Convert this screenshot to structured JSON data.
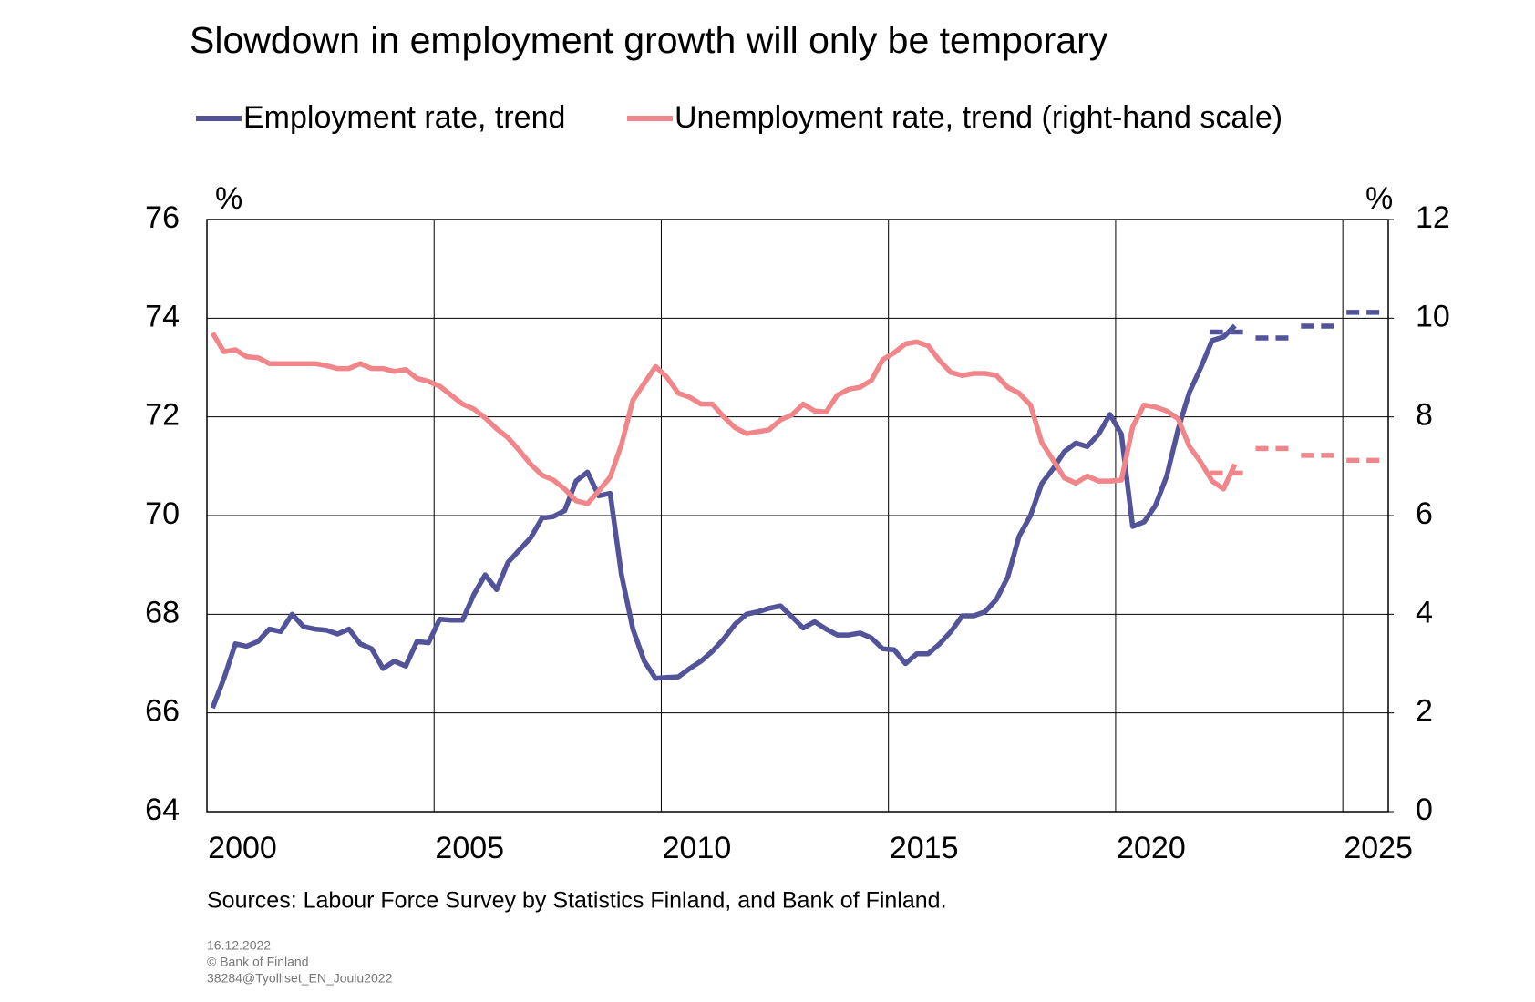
{
  "chart_data": {
    "type": "line",
    "title": "Slowdown in employment growth will only be temporary",
    "y_unit": "%",
    "y2_unit": "%",
    "source": "Sources: Labour Force Survey by Statistics Finland, and Bank of Finland.",
    "notes": [
      "16.12.2022",
      "© Bank of Finland",
      "38284@Tyolliset_EN_Joulu2022"
    ],
    "xlim": [
      2000,
      2026
    ],
    "xticks": [
      2000,
      2005,
      2010,
      2015,
      2020,
      2025
    ],
    "ylim": [
      64,
      76
    ],
    "yticks": [
      64,
      66,
      68,
      70,
      72,
      74,
      76
    ],
    "y2lim": [
      0,
      12
    ],
    "y2ticks": [
      0,
      2,
      4,
      6,
      8,
      10,
      12
    ],
    "grid": true,
    "x": [
      2000.125,
      2000.375,
      2000.625,
      2000.875,
      2001.125,
      2001.375,
      2001.625,
      2001.875,
      2002.125,
      2002.375,
      2002.625,
      2002.875,
      2003.125,
      2003.375,
      2003.625,
      2003.875,
      2004.125,
      2004.375,
      2004.625,
      2004.875,
      2005.125,
      2005.375,
      2005.625,
      2005.875,
      2006.125,
      2006.375,
      2006.625,
      2006.875,
      2007.125,
      2007.375,
      2007.625,
      2007.875,
      2008.125,
      2008.375,
      2008.625,
      2008.875,
      2009.125,
      2009.375,
      2009.625,
      2009.875,
      2010.125,
      2010.375,
      2010.625,
      2010.875,
      2011.125,
      2011.375,
      2011.625,
      2011.875,
      2012.125,
      2012.375,
      2012.625,
      2012.875,
      2013.125,
      2013.375,
      2013.625,
      2013.875,
      2014.125,
      2014.375,
      2014.625,
      2014.875,
      2015.125,
      2015.375,
      2015.625,
      2015.875,
      2016.125,
      2016.375,
      2016.625,
      2016.875,
      2017.125,
      2017.375,
      2017.625,
      2017.875,
      2018.125,
      2018.375,
      2018.625,
      2018.875,
      2019.125,
      2019.375,
      2019.625,
      2019.875,
      2020.125,
      2020.375,
      2020.625,
      2020.875,
      2021.125,
      2021.375,
      2021.625,
      2021.875,
      2022.125,
      2022.375,
      2022.625
    ],
    "series": [
      {
        "name": "Employment rate, trend",
        "color": "#525399",
        "axis": "y",
        "values": [
          66.1,
          66.7,
          67.4,
          67.35,
          67.45,
          67.7,
          67.65,
          68.0,
          67.75,
          67.7,
          67.68,
          67.6,
          67.7,
          67.4,
          67.3,
          66.9,
          67.05,
          66.95,
          67.45,
          67.42,
          67.9,
          67.88,
          67.88,
          68.4,
          68.8,
          68.5,
          69.05,
          69.3,
          69.55,
          69.95,
          69.98,
          70.1,
          70.7,
          70.88,
          70.4,
          70.45,
          68.8,
          67.7,
          67.05,
          66.7,
          66.72,
          66.73,
          66.9,
          67.05,
          67.25,
          67.5,
          67.8,
          68.0,
          68.05,
          68.12,
          68.17,
          67.95,
          67.72,
          67.85,
          67.7,
          67.58,
          67.58,
          67.62,
          67.52,
          67.3,
          67.28,
          67.0,
          67.2,
          67.2,
          67.4,
          67.65,
          67.97,
          67.97,
          68.05,
          68.3,
          68.75,
          69.58,
          70.0,
          70.65,
          70.95,
          71.3,
          71.47,
          71.4,
          71.65,
          72.05,
          71.65,
          69.78,
          69.87,
          70.2,
          70.8,
          71.75,
          72.5,
          73.0,
          73.55,
          73.62,
          73.85
        ],
        "forecast": {
          "x": [
            2022,
            2023,
            2024,
            2025
          ],
          "values": [
            73.72,
            73.6,
            73.84,
            74.12
          ]
        }
      },
      {
        "name": "Unemployment rate, trend (right-hand scale)",
        "color": "#f0868a",
        "axis": "y2",
        "values": [
          9.7,
          9.32,
          9.36,
          9.22,
          9.2,
          9.08,
          9.08,
          9.08,
          9.08,
          9.08,
          9.04,
          8.98,
          8.98,
          9.08,
          8.98,
          8.98,
          8.92,
          8.96,
          8.78,
          8.72,
          8.62,
          8.44,
          8.26,
          8.16,
          7.98,
          7.76,
          7.58,
          7.32,
          7.04,
          6.82,
          6.72,
          6.54,
          6.3,
          6.24,
          6.5,
          6.78,
          7.44,
          8.34,
          8.68,
          9.02,
          8.8,
          8.48,
          8.4,
          8.26,
          8.26,
          8.0,
          7.78,
          7.66,
          7.7,
          7.74,
          7.94,
          8.04,
          8.26,
          8.12,
          8.1,
          8.44,
          8.56,
          8.6,
          8.74,
          9.16,
          9.3,
          9.48,
          9.52,
          9.44,
          9.14,
          8.9,
          8.84,
          8.88,
          8.88,
          8.84,
          8.6,
          8.48,
          8.24,
          7.48,
          7.12,
          6.76,
          6.66,
          6.8,
          6.7,
          6.7,
          6.72,
          7.8,
          8.24,
          8.2,
          8.12,
          7.96,
          7.4,
          7.08,
          6.7,
          6.54,
          7.04
        ],
        "forecast": {
          "x": [
            2022,
            2023,
            2024,
            2025
          ],
          "values": [
            6.86,
            7.36,
            7.22,
            7.12
          ]
        }
      }
    ]
  }
}
